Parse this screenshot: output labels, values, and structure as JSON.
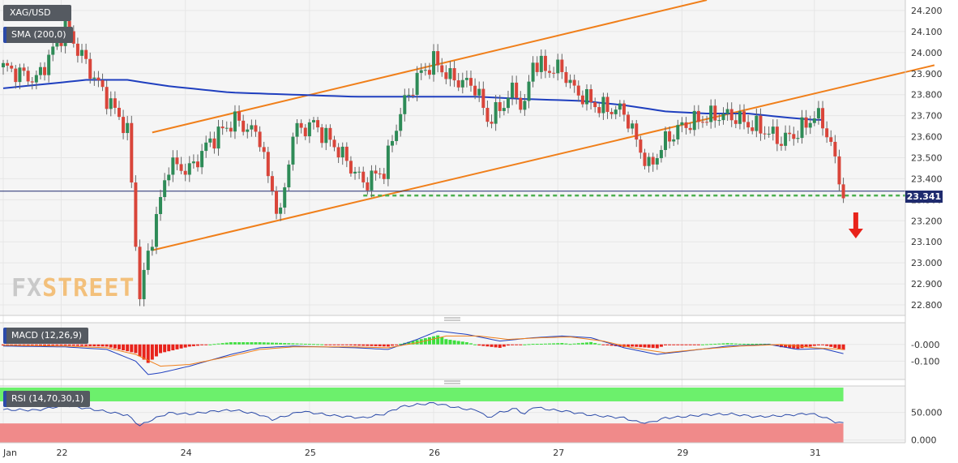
{
  "symbol_label": "XAG/USD",
  "sma_label": "SMA (200,0)",
  "macd_label": "MACD (12,26,9)",
  "rsi_label": "RSI (14,70,30,1)",
  "current_price": "23.341",
  "watermark": {
    "part1": "FX",
    "part2": "STREET"
  },
  "colors": {
    "up": "#2e8b57",
    "down": "#d9453a",
    "sma": "#1f3fbf",
    "channel": "#f07f1a",
    "support": "#4caf50",
    "arrow": "#e8231b",
    "macd_pos": "#3dde3d",
    "macd_neg": "#e8231b",
    "rsi_line": "#2b4aa8",
    "rsi_over": "#6cf06c",
    "rsi_under": "#f08a8a"
  },
  "chart_data": [
    {
      "type": "candlestick",
      "title": "XAG/USD",
      "ylim": [
        22.75,
        24.25
      ],
      "yticks": [
        "24.200",
        "24.100",
        "24.000",
        "23.900",
        "23.800",
        "23.700",
        "23.600",
        "23.500",
        "23.400",
        "23.300",
        "23.200",
        "23.100",
        "23.000",
        "22.900",
        "22.800"
      ],
      "xticks": [
        "Jan",
        "22",
        "24",
        "25",
        "26",
        "27",
        "29",
        "31"
      ],
      "xtick_pos": [
        0,
        14,
        44,
        74,
        104,
        134,
        164,
        196
      ],
      "n_bars": 207,
      "sma_200": [
        [
          0,
          23.83
        ],
        [
          10,
          23.85
        ],
        [
          20,
          23.87
        ],
        [
          30,
          23.87
        ],
        [
          40,
          23.84
        ],
        [
          55,
          23.81
        ],
        [
          70,
          23.8
        ],
        [
          85,
          23.79
        ],
        [
          100,
          23.79
        ],
        [
          115,
          23.79
        ],
        [
          125,
          23.78
        ],
        [
          140,
          23.77
        ],
        [
          150,
          23.75
        ],
        [
          160,
          23.72
        ],
        [
          170,
          23.71
        ],
        [
          180,
          23.71
        ],
        [
          190,
          23.69
        ],
        [
          196,
          23.68
        ],
        [
          205,
          23.68
        ]
      ],
      "channel_upper": [
        [
          36,
          23.62
        ],
        [
          170,
          24.25
        ]
      ],
      "channel_lower": [
        [
          36,
          23.06
        ],
        [
          225,
          23.94
        ]
      ],
      "support_level": 23.32,
      "support_range": [
        87,
        222
      ],
      "current_price": 23.341,
      "signal": "down",
      "ohlc_keypoints": [
        [
          0,
          23.93
        ],
        [
          8,
          23.87
        ],
        [
          15,
          24.12
        ],
        [
          22,
          23.88
        ],
        [
          30,
          23.63
        ],
        [
          33,
          22.84
        ],
        [
          35,
          23.04
        ],
        [
          40,
          23.47
        ],
        [
          45,
          23.44
        ],
        [
          50,
          23.58
        ],
        [
          56,
          23.68
        ],
        [
          62,
          23.6
        ],
        [
          64,
          23.4
        ],
        [
          67,
          23.22
        ],
        [
          70,
          23.62
        ],
        [
          75,
          23.66
        ],
        [
          80,
          23.56
        ],
        [
          87,
          23.38
        ],
        [
          92,
          23.44
        ],
        [
          96,
          23.72
        ],
        [
          100,
          23.88
        ],
        [
          104,
          23.96
        ],
        [
          108,
          23.88
        ],
        [
          114,
          23.84
        ],
        [
          117,
          23.68
        ],
        [
          120,
          23.73
        ],
        [
          123,
          23.82
        ],
        [
          126,
          23.74
        ],
        [
          128,
          23.96
        ],
        [
          131,
          23.92
        ],
        [
          135,
          23.92
        ],
        [
          138,
          23.82
        ],
        [
          144,
          23.74
        ],
        [
          150,
          23.72
        ],
        [
          153,
          23.58
        ],
        [
          156,
          23.45
        ],
        [
          160,
          23.58
        ],
        [
          164,
          23.65
        ],
        [
          168,
          23.68
        ],
        [
          172,
          23.7
        ],
        [
          176,
          23.7
        ],
        [
          180,
          23.66
        ],
        [
          184,
          23.63
        ],
        [
          188,
          23.58
        ],
        [
          192,
          23.62
        ],
        [
          196,
          23.7
        ],
        [
          198,
          23.67
        ],
        [
          200,
          23.56
        ],
        [
          202,
          23.4
        ],
        [
          203,
          23.33
        ]
      ]
    },
    {
      "type": "line",
      "title": "MACD (12,26,9)",
      "ylim": [
        -0.2,
        0.12
      ],
      "yticks": [
        "-0.000",
        "-0.100"
      ],
      "macd_keypoints": [
        [
          0,
          -0.01
        ],
        [
          15,
          -0.015
        ],
        [
          25,
          -0.03
        ],
        [
          32,
          -0.1
        ],
        [
          35,
          -0.18
        ],
        [
          38,
          -0.17
        ],
        [
          45,
          -0.13
        ],
        [
          55,
          -0.06
        ],
        [
          62,
          -0.02
        ],
        [
          70,
          -0.01
        ],
        [
          85,
          -0.02
        ],
        [
          93,
          -0.03
        ],
        [
          100,
          0.03
        ],
        [
          105,
          0.08
        ],
        [
          112,
          0.06
        ],
        [
          120,
          0.02
        ],
        [
          128,
          0.04
        ],
        [
          135,
          0.05
        ],
        [
          142,
          0.04
        ],
        [
          150,
          -0.02
        ],
        [
          158,
          -0.06
        ],
        [
          165,
          -0.04
        ],
        [
          175,
          -0.01
        ],
        [
          185,
          0.0
        ],
        [
          192,
          -0.03
        ],
        [
          198,
          -0.025
        ],
        [
          203,
          -0.055
        ]
      ],
      "signal_keypoints": [
        [
          0,
          -0.005
        ],
        [
          15,
          -0.01
        ],
        [
          25,
          -0.02
        ],
        [
          32,
          -0.06
        ],
        [
          38,
          -0.13
        ],
        [
          45,
          -0.12
        ],
        [
          55,
          -0.07
        ],
        [
          62,
          -0.03
        ],
        [
          70,
          -0.015
        ],
        [
          85,
          -0.015
        ],
        [
          93,
          -0.02
        ],
        [
          100,
          0.01
        ],
        [
          107,
          0.05
        ],
        [
          115,
          0.05
        ],
        [
          122,
          0.03
        ],
        [
          130,
          0.04
        ],
        [
          137,
          0.045
        ],
        [
          145,
          0.02
        ],
        [
          152,
          -0.02
        ],
        [
          160,
          -0.05
        ],
        [
          168,
          -0.03
        ],
        [
          178,
          -0.01
        ],
        [
          188,
          0.0
        ],
        [
          196,
          -0.02
        ],
        [
          203,
          -0.03
        ]
      ]
    },
    {
      "type": "line",
      "title": "RSI (14,70,30,1)",
      "ylim": [
        -5,
        95
      ],
      "yticks": [
        "50.000",
        "0.000"
      ],
      "overbought": 70,
      "oversold": 30,
      "rsi_keypoints": [
        [
          0,
          55
        ],
        [
          8,
          54
        ],
        [
          15,
          63
        ],
        [
          22,
          55
        ],
        [
          30,
          45
        ],
        [
          33,
          26
        ],
        [
          36,
          37
        ],
        [
          40,
          49
        ],
        [
          45,
          47
        ],
        [
          52,
          53
        ],
        [
          56,
          54
        ],
        [
          62,
          46
        ],
        [
          65,
          37
        ],
        [
          68,
          43
        ],
        [
          72,
          52
        ],
        [
          80,
          44
        ],
        [
          87,
          40
        ],
        [
          92,
          47
        ],
        [
          96,
          60
        ],
        [
          100,
          64
        ],
        [
          104,
          67
        ],
        [
          110,
          58
        ],
        [
          115,
          53
        ],
        [
          117,
          40
        ],
        [
          120,
          50
        ],
        [
          124,
          57
        ],
        [
          126,
          46
        ],
        [
          128,
          60
        ],
        [
          132,
          55
        ],
        [
          136,
          52
        ],
        [
          142,
          45
        ],
        [
          150,
          40
        ],
        [
          153,
          33
        ],
        [
          156,
          31
        ],
        [
          160,
          40
        ],
        [
          164,
          42
        ],
        [
          170,
          46
        ],
        [
          176,
          47
        ],
        [
          182,
          42
        ],
        [
          188,
          44
        ],
        [
          195,
          48
        ],
        [
          198,
          42
        ],
        [
          201,
          33
        ],
        [
          203,
          30
        ]
      ]
    }
  ]
}
